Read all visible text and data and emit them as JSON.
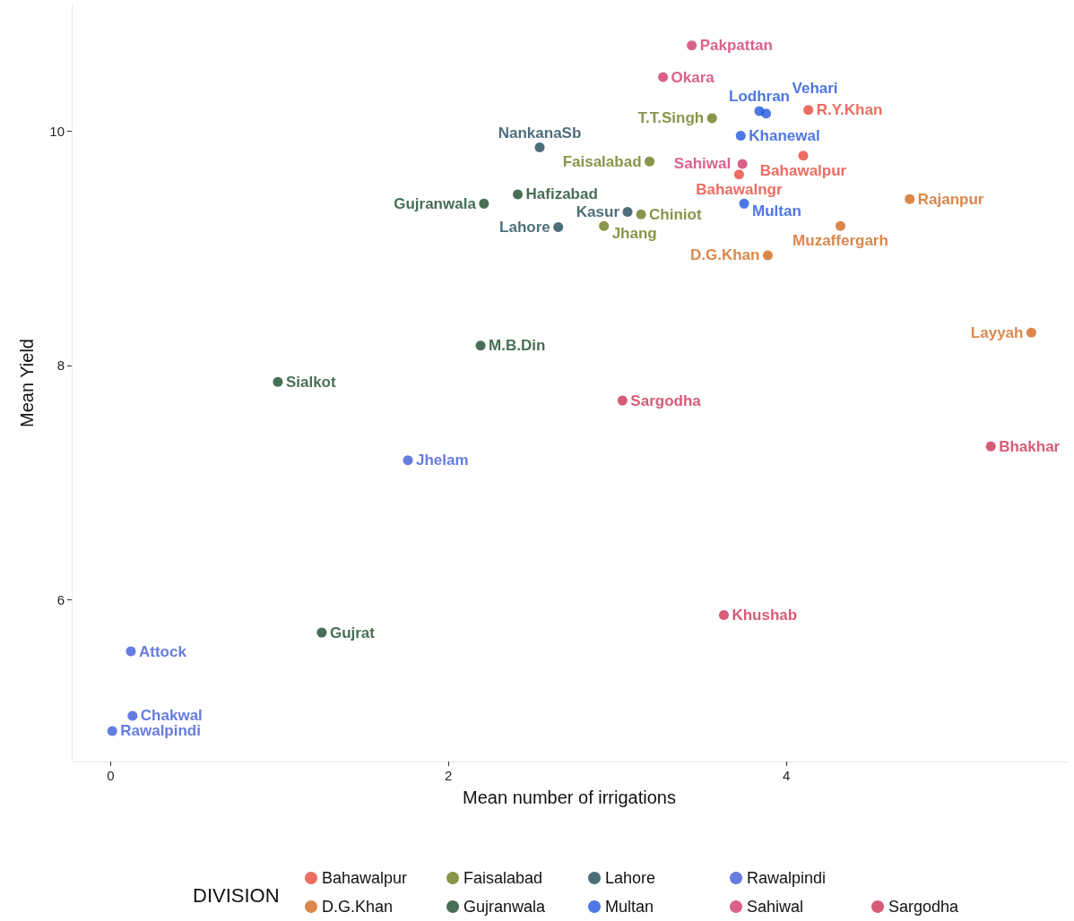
{
  "chart_data": {
    "type": "scatter",
    "xlabel": "Mean number of irrigations",
    "ylabel": "Mean Yield",
    "legend_title": "DIVISION",
    "xlim": [
      -0.23,
      5.66
    ],
    "ylim": [
      4.62,
      11.08
    ],
    "xticks": [
      0,
      2,
      4
    ],
    "yticks": [
      6,
      8,
      10
    ],
    "grid": false,
    "legend": "bottom",
    "marker": "circle",
    "series": [
      {
        "name": "Bahawalpur",
        "color": "#e8483a",
        "x": [
          4.13,
          4.1,
          3.72
        ],
        "values": [
          10.18,
          9.79,
          9.63
        ],
        "value_labels": [
          "R.Y.Khan",
          "Bahawalpur",
          "Bahawalngr"
        ]
      },
      {
        "name": "D.G.Khan",
        "color": "#d2691e",
        "x": [
          5.45,
          4.73,
          4.32,
          3.89
        ],
        "values": [
          8.28,
          9.42,
          9.19,
          8.94
        ],
        "value_labels": [
          "Layyah",
          "Rajanpur",
          "Muzaffergarh",
          "D.G.Khan"
        ]
      },
      {
        "name": "Faisalabad",
        "color": "#6b7a1c",
        "x": [
          3.19,
          3.56,
          2.92,
          3.14
        ],
        "values": [
          9.74,
          10.11,
          9.19,
          9.29
        ],
        "value_labels": [
          "Faisalabad",
          "T.T.Singh",
          "Jhang",
          "Chiniot"
        ]
      },
      {
        "name": "Gujranwala",
        "color": "#1a4a2a",
        "x": [
          2.21,
          2.41,
          0.99,
          2.19,
          1.25
        ],
        "values": [
          9.38,
          9.46,
          7.86,
          8.17,
          5.72
        ],
        "value_labels": [
          "Gujranwala",
          "Hafizabad",
          "Sialkot",
          "M.B.Din",
          "Gujrat"
        ]
      },
      {
        "name": "Lahore",
        "color": "#1f4a5a",
        "x": [
          2.54,
          2.65,
          3.06
        ],
        "values": [
          9.86,
          9.18,
          9.31
        ],
        "value_labels": [
          "NankanaSb",
          "Lahore",
          "Kasur"
        ]
      },
      {
        "name": "Multan",
        "color": "#2255dd",
        "x": [
          3.75,
          3.73,
          3.84,
          3.88
        ],
        "values": [
          9.38,
          9.96,
          10.17,
          10.15
        ],
        "value_labels": [
          "Multan",
          "Khanewal",
          "Lodhran",
          "Vehari"
        ]
      },
      {
        "name": "Rawalpindi",
        "color": "#3e5bd8",
        "x": [
          0.12,
          0.13,
          0.01,
          1.76
        ],
        "values": [
          5.56,
          5.01,
          4.88,
          7.19
        ],
        "value_labels": [
          "Attock",
          "Chakwal",
          "Rawalpindi",
          "Jhelam"
        ]
      },
      {
        "name": "Sahiwal",
        "color": "#d23a6a",
        "x": [
          3.44,
          3.27,
          3.74
        ],
        "values": [
          10.73,
          10.46,
          9.72
        ],
        "value_labels": [
          "Pakpattan",
          "Okara",
          "Sahiwal"
        ]
      },
      {
        "name": "Sargodha",
        "color": "#cc3355",
        "x": [
          3.03,
          3.63,
          5.21
        ],
        "values": [
          7.7,
          5.87,
          7.31
        ],
        "value_labels": [
          "Sargodha",
          "Khushab",
          "Bhakhar"
        ]
      }
    ]
  }
}
